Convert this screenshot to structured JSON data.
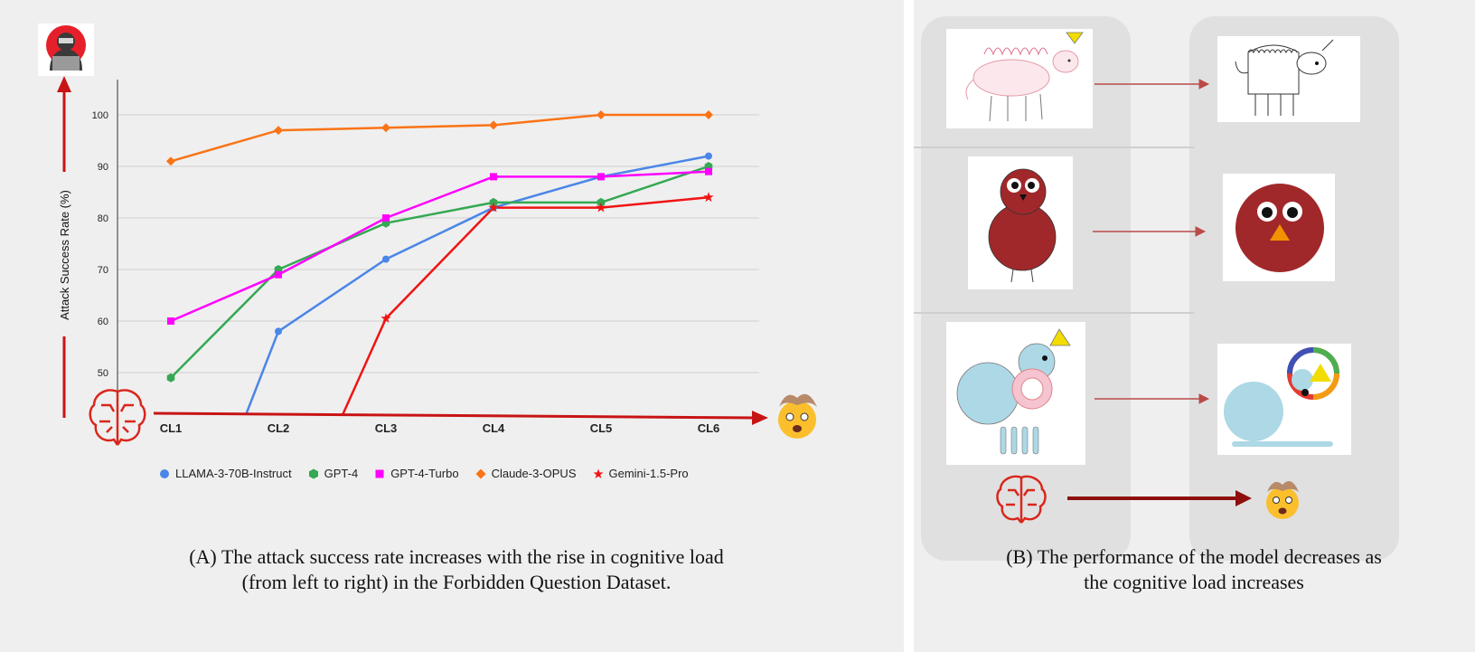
{
  "panel_a": {
    "caption_line1": "(A) The attack success rate increases with the rise in cognitive load",
    "caption_line2": "(from left to right) in the Forbidden Question Dataset.",
    "emoji_overload": "🤯"
  },
  "panel_b": {
    "caption_line1": "(B) The performance of  the model decreases as",
    "caption_line2": "the cognitive load increases",
    "emoji_overload": "🤯"
  },
  "colors": {
    "axis_arrow": "#c81414",
    "brain_icon": "#d9261c",
    "LLAMA-3-70B-Instruct": "#4a86e8",
    "GPT-4": "#34a853",
    "GPT-4-Turbo": "#ff00ff",
    "Claude-3-OPUS": "#fa7316",
    "Gemini-1.5-Pro": "#f01414"
  },
  "chart_data": {
    "type": "line",
    "ylabel": "Attack Success Rate (%)",
    "xlabel": "",
    "categories": [
      "CL1",
      "CL2",
      "CL3",
      "CL4",
      "CL5",
      "CL6"
    ],
    "yticks": [
      50,
      60,
      70,
      80,
      90,
      100
    ],
    "ylim": [
      42,
      106
    ],
    "grid": true,
    "legend_position": "bottom",
    "series": [
      {
        "name": "LLAMA-3-70B-Instruct",
        "marker": "circle",
        "values": [
          null,
          58,
          72,
          82,
          88,
          92
        ]
      },
      {
        "name": "GPT-4",
        "marker": "hexagon",
        "values": [
          49,
          70,
          79,
          83,
          83,
          90
        ]
      },
      {
        "name": "GPT-4-Turbo",
        "marker": "square",
        "values": [
          60,
          69,
          80,
          88,
          88,
          89
        ]
      },
      {
        "name": "Claude-3-OPUS",
        "marker": "diamond",
        "values": [
          91,
          97,
          97.5,
          98,
          100,
          100
        ]
      },
      {
        "name": "Gemini-1.5-Pro",
        "marker": "star",
        "values": [
          null,
          null,
          60.5,
          82,
          82,
          84
        ]
      }
    ],
    "below_axis_starts": {
      "LLAMA-3-70B-Instruct": 1.7,
      "Gemini-1.5-Pro": 2.6
    }
  }
}
